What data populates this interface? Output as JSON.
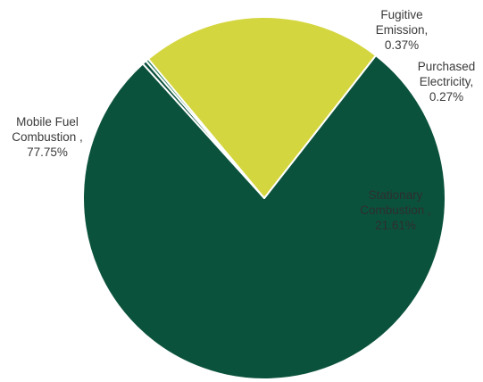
{
  "chart_data": {
    "type": "pie",
    "title": "",
    "slices": [
      {
        "name": "Mobile Fuel Combustion",
        "value": 77.75,
        "label_lines": [
          "Mobile Fuel",
          "Combustion ,",
          "77.75%"
        ],
        "color": "#0b523c"
      },
      {
        "name": "Fugitive Emission",
        "value": 0.37,
        "label_lines": [
          "Fugitive",
          "Emission,",
          "0.37%"
        ],
        "color": "#0b523c"
      },
      {
        "name": "Purchased Electricity",
        "value": 0.27,
        "label_lines": [
          "Purchased",
          "Electricity,",
          "0.27%"
        ],
        "color": "#2e7d5b"
      },
      {
        "name": "Stationary Combustion",
        "value": 21.61,
        "label_lines": [
          "Stationary",
          "Combustion ,",
          "21.61%"
        ],
        "color": "#d4d63f"
      }
    ],
    "legend": "none"
  }
}
